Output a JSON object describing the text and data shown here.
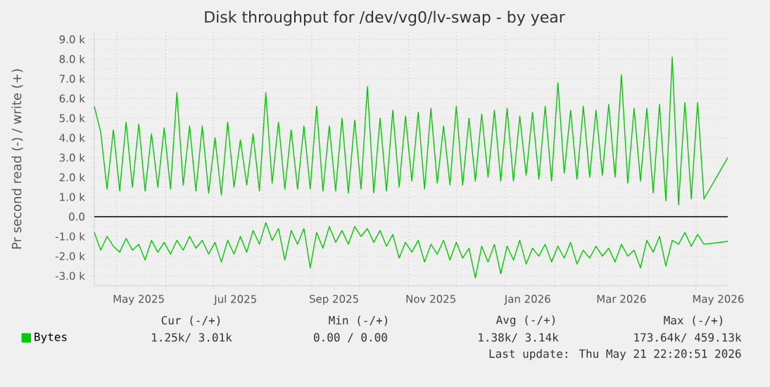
{
  "chart_data": {
    "type": "line",
    "title": "Disk throughput for /dev/vg0/lv-swap - by year",
    "ylabel": "Pr second read (-) / write (+)",
    "x": [
      "2025-04-17",
      "2025-04-21",
      "2025-04-25",
      "2025-04-29",
      "2025-05-03",
      "2025-05-07",
      "2025-05-11",
      "2025-05-15",
      "2025-05-19",
      "2025-05-23",
      "2025-05-27",
      "2025-05-31",
      "2025-06-04",
      "2025-06-08",
      "2025-06-12",
      "2025-06-16",
      "2025-06-20",
      "2025-06-24",
      "2025-06-28",
      "2025-07-02",
      "2025-07-06",
      "2025-07-10",
      "2025-07-14",
      "2025-07-18",
      "2025-07-22",
      "2025-07-26",
      "2025-07-30",
      "2025-08-03",
      "2025-08-07",
      "2025-08-11",
      "2025-08-15",
      "2025-08-19",
      "2025-08-23",
      "2025-08-27",
      "2025-08-31",
      "2025-09-04",
      "2025-09-08",
      "2025-09-12",
      "2025-09-16",
      "2025-09-20",
      "2025-09-24",
      "2025-09-28",
      "2025-10-02",
      "2025-10-06",
      "2025-10-10",
      "2025-10-14",
      "2025-10-18",
      "2025-10-22",
      "2025-10-26",
      "2025-10-30",
      "2025-11-03",
      "2025-11-07",
      "2025-11-11",
      "2025-11-15",
      "2025-11-19",
      "2025-11-23",
      "2025-11-27",
      "2025-12-01",
      "2025-12-05",
      "2025-12-09",
      "2025-12-13",
      "2025-12-17",
      "2025-12-21",
      "2025-12-25",
      "2025-12-29",
      "2026-01-02",
      "2026-01-06",
      "2026-01-10",
      "2026-01-14",
      "2026-01-18",
      "2026-01-22",
      "2026-01-26",
      "2026-01-30",
      "2026-02-03",
      "2026-02-07",
      "2026-02-11",
      "2026-02-15",
      "2026-02-19",
      "2026-02-23",
      "2026-02-27",
      "2026-03-03",
      "2026-03-07",
      "2026-03-11",
      "2026-03-15",
      "2026-03-19",
      "2026-03-23",
      "2026-03-27",
      "2026-03-31",
      "2026-04-04",
      "2026-04-08",
      "2026-04-12",
      "2026-04-16",
      "2026-04-20",
      "2026-04-24",
      "2026-04-28",
      "2026-05-02",
      "2026-05-06",
      "2026-05-21"
    ],
    "series": [
      {
        "name": "Bytes",
        "color": "#00cc00",
        "values": [
          5600,
          4300,
          1400,
          4400,
          1300,
          4800,
          1500,
          4700,
          1300,
          4200,
          1500,
          4500,
          1400,
          6300,
          1600,
          4600,
          1300,
          4600,
          1200,
          4000,
          1100,
          4800,
          1500,
          3900,
          1600,
          4200,
          1300,
          6300,
          1700,
          4800,
          1400,
          4400,
          1400,
          4600,
          1400,
          5600,
          1300,
          4600,
          1300,
          5000,
          1200,
          4900,
          1400,
          6600,
          1200,
          5000,
          1300,
          5400,
          1500,
          5100,
          1800,
          5300,
          1400,
          5500,
          1700,
          4600,
          1600,
          5600,
          1600,
          5000,
          1800,
          5200,
          2000,
          5400,
          1800,
          5500,
          1800,
          5100,
          2100,
          5300,
          1900,
          5600,
          1800,
          6800,
          2200,
          5400,
          1900,
          5600,
          2000,
          5400,
          2100,
          5700,
          2000,
          7200,
          1700,
          5500,
          1800,
          5500,
          1200,
          5700,
          800,
          8100,
          600,
          5800,
          900,
          5800,
          900,
          3000
        ]
      },
      {
        "color": "#00cc00",
        "values": [
          -800,
          -1700,
          -1000,
          -1500,
          -1800,
          -1100,
          -1700,
          -1400,
          -2200,
          -1200,
          -1800,
          -1300,
          -1900,
          -1200,
          -1700,
          -1000,
          -1600,
          -1200,
          -1900,
          -1300,
          -2300,
          -1200,
          -1900,
          -1000,
          -1800,
          -700,
          -1400,
          -300,
          -1200,
          -600,
          -2200,
          -700,
          -1400,
          -600,
          -2600,
          -800,
          -1600,
          -500,
          -1300,
          -700,
          -1400,
          -500,
          -1000,
          -600,
          -1300,
          -700,
          -1500,
          -900,
          -2100,
          -1300,
          -1800,
          -1200,
          -2300,
          -1400,
          -1900,
          -1200,
          -2200,
          -1300,
          -2100,
          -1600,
          -3100,
          -1500,
          -2300,
          -1400,
          -2900,
          -1500,
          -2200,
          -1200,
          -2400,
          -1600,
          -2000,
          -1400,
          -2300,
          -1500,
          -2100,
          -1300,
          -2400,
          -1700,
          -2100,
          -1500,
          -2000,
          -1600,
          -2300,
          -1400,
          -2000,
          -1700,
          -2600,
          -1200,
          -1800,
          -1000,
          -2500,
          -1200,
          -1400,
          -800,
          -1500,
          -900,
          -1400,
          -1250
        ]
      }
    ],
    "xlim": [
      "2025-04-17",
      "2026-05-21"
    ],
    "xticks": [
      {
        "value": "2025-05-15",
        "label": "May 2025"
      },
      {
        "value": "2025-07-15",
        "label": "Jul 2025"
      },
      {
        "value": "2025-09-15",
        "label": "Sep 2025"
      },
      {
        "value": "2025-11-15",
        "label": "Nov 2025"
      },
      {
        "value": "2026-01-15",
        "label": "Jan 2026"
      },
      {
        "value": "2026-03-15",
        "label": "Mar 2026"
      },
      {
        "value": "2026-05-15",
        "label": "May 2026"
      },
      {
        "value": "2025-05-01",
        "label": null
      },
      {
        "value": "2025-06-01",
        "label": null
      },
      {
        "value": "2025-07-01",
        "label": null
      },
      {
        "value": "2025-08-01",
        "label": null
      },
      {
        "value": "2025-09-01",
        "label": null
      },
      {
        "value": "2025-10-01",
        "label": null
      },
      {
        "value": "2025-11-01",
        "label": null
      },
      {
        "value": "2025-12-01",
        "label": null
      },
      {
        "value": "2026-01-01",
        "label": null
      },
      {
        "value": "2026-02-01",
        "label": null
      },
      {
        "value": "2026-03-01",
        "label": null
      },
      {
        "value": "2026-04-01",
        "label": null
      },
      {
        "value": "2026-05-01",
        "label": null
      }
    ],
    "ylim": [
      -3500,
      9350
    ],
    "yticks": [
      {
        "value": -3000,
        "label": "-3.0 k"
      },
      {
        "value": -2000,
        "label": "-2.0 k"
      },
      {
        "value": -1000,
        "label": "-1.0 k"
      },
      {
        "value": 0,
        "label": "0.0"
      },
      {
        "value": 1000,
        "label": "1.0 k"
      },
      {
        "value": 2000,
        "label": "2.0 k"
      },
      {
        "value": 3000,
        "label": "3.0 k"
      },
      {
        "value": 4000,
        "label": "4.0 k"
      },
      {
        "value": 5000,
        "label": "5.0 k"
      },
      {
        "value": 6000,
        "label": "6.0 k"
      },
      {
        "value": 7000,
        "label": "7.0 k"
      },
      {
        "value": 8000,
        "label": "8.0 k"
      },
      {
        "value": 9000,
        "label": "9.0 k"
      }
    ],
    "ref_lines": [
      {
        "axis": "y",
        "value": 0,
        "color": "#000000"
      }
    ],
    "grid": true,
    "legend": "bottom left",
    "annotations": [
      "Cur (-/+)",
      "Min (-/+)",
      "Avg (-/+)",
      "Max (-/+)",
      "1.25k/ 3.01k",
      "0.00 / 0.00",
      "1.38k/ 3.14k",
      "173.64k/ 459.13k",
      "Last update: Thu May 21 22:20:51 2026"
    ]
  }
}
